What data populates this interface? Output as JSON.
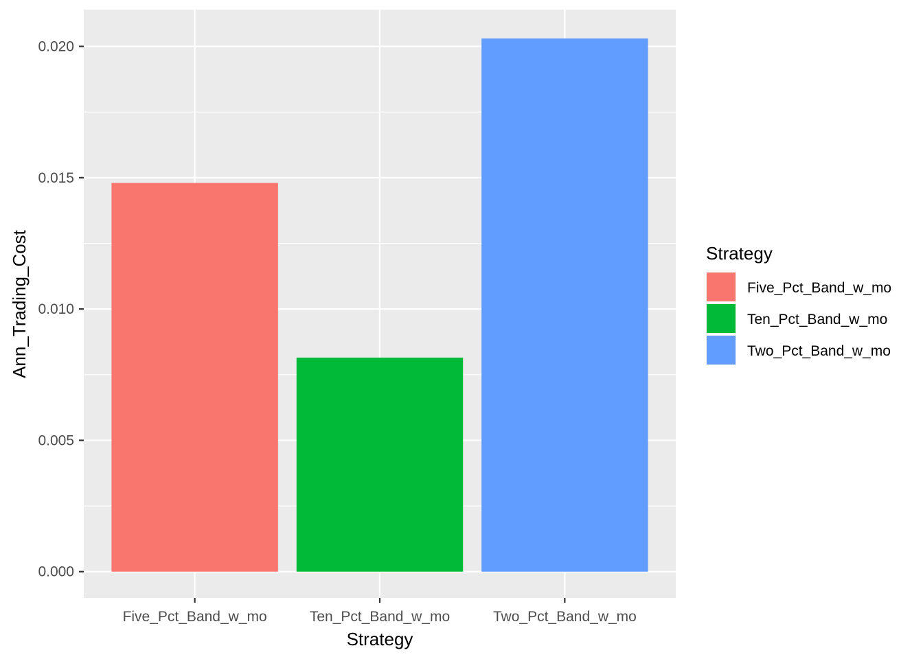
{
  "chart_data": {
    "type": "bar",
    "categories": [
      "Five_Pct_Band_w_mo",
      "Ten_Pct_Band_w_mo",
      "Two_Pct_Band_w_mo"
    ],
    "values": [
      0.0148,
      0.00815,
      0.0203
    ],
    "colors": [
      "#F8766D",
      "#00BA38",
      "#619CFF"
    ],
    "xlabel": "Strategy",
    "ylabel": "Ann_Trading_Cost",
    "ylim": [
      -0.001,
      0.0214
    ],
    "yticks": [
      0.0,
      0.005,
      0.01,
      0.015,
      0.02
    ],
    "ytick_labels": [
      "0.000",
      "0.005",
      "0.010",
      "0.015",
      "0.020"
    ],
    "grid": true,
    "panel_background": "#EBEBEB",
    "gridline_color": "#FFFFFF",
    "legend": {
      "title": "Strategy",
      "position": "right",
      "entries": [
        "Five_Pct_Band_w_mo",
        "Ten_Pct_Band_w_mo",
        "Two_Pct_Band_w_mo"
      ]
    }
  }
}
